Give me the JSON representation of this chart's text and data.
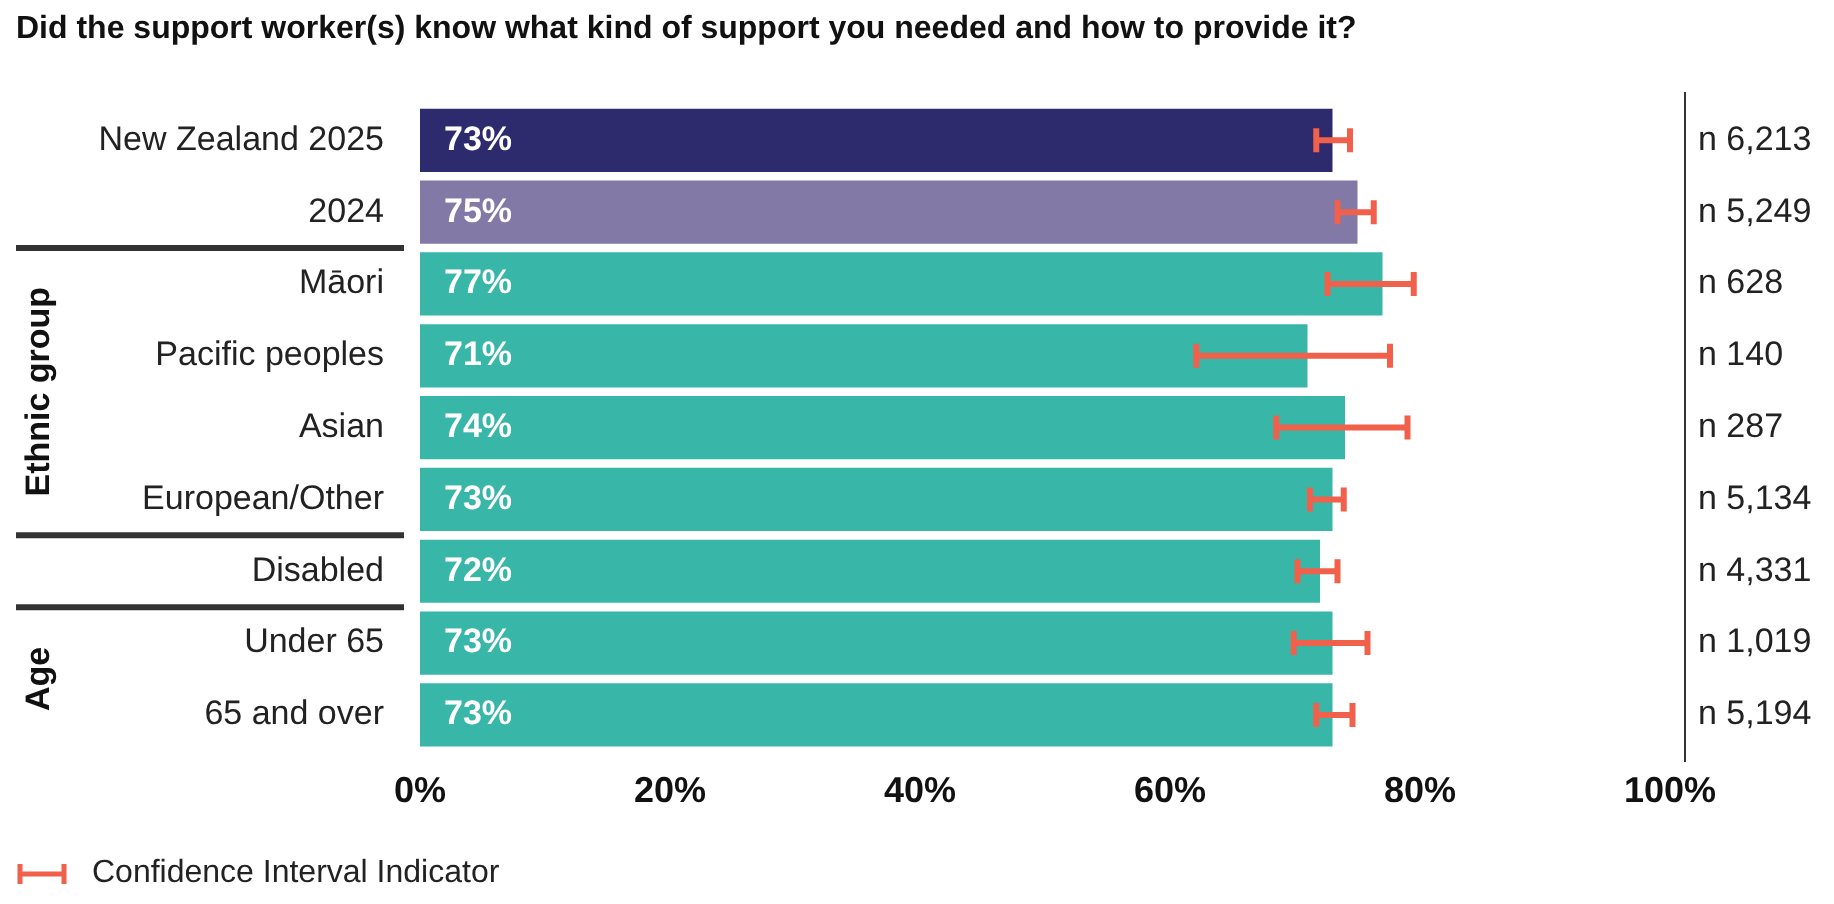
{
  "chart_data": {
    "type": "bar",
    "orientation": "horizontal",
    "title": "Did the support worker(s) know what kind of support you needed and how to provide it?",
    "categories": [
      "New Zealand 2025",
      "2024",
      "Māori",
      "Pacific peoples",
      "Asian",
      "European/Other",
      "Disabled",
      "Under 65",
      "65 and over"
    ],
    "values": [
      73,
      75,
      77,
      71,
      74,
      73,
      72,
      73,
      73
    ],
    "colors": [
      "#2e2a6e",
      "#8279a6",
      "#38b6a8",
      "#38b6a8",
      "#38b6a8",
      "#38b6a8",
      "#38b6a8",
      "#38b6a8",
      "#38b6a8"
    ],
    "value_labels": [
      "73%",
      "75%",
      "77%",
      "71%",
      "74%",
      "73%",
      "72%",
      "73%",
      "73%"
    ],
    "errors": [
      [
        71.7,
        74.4
      ],
      [
        73.4,
        76.3
      ],
      [
        72.6,
        79.5
      ],
      [
        62.1,
        77.6
      ],
      [
        68.5,
        79.0
      ],
      [
        71.2,
        73.9
      ],
      [
        70.2,
        73.4
      ],
      [
        69.9,
        75.8
      ],
      [
        71.7,
        74.6
      ]
    ],
    "xlim": [
      0,
      100
    ],
    "xticks": [
      {
        "value": 0,
        "label": "0%"
      },
      {
        "value": 20,
        "label": "20%"
      },
      {
        "value": 40,
        "label": "40%"
      },
      {
        "value": 60,
        "label": "60%"
      },
      {
        "value": 80,
        "label": "80%"
      },
      {
        "value": 100,
        "label": "100%"
      }
    ],
    "grid": false,
    "legend": false,
    "annotations": [
      "n 6,213",
      "n 5,249",
      "n 628",
      "n 140",
      "n 287",
      "n 5,134",
      "n 4,331",
      "n 1,019",
      "n 5,194",
      "Ethnic group",
      "Age",
      "Confidence Interval Indicator"
    ]
  }
}
